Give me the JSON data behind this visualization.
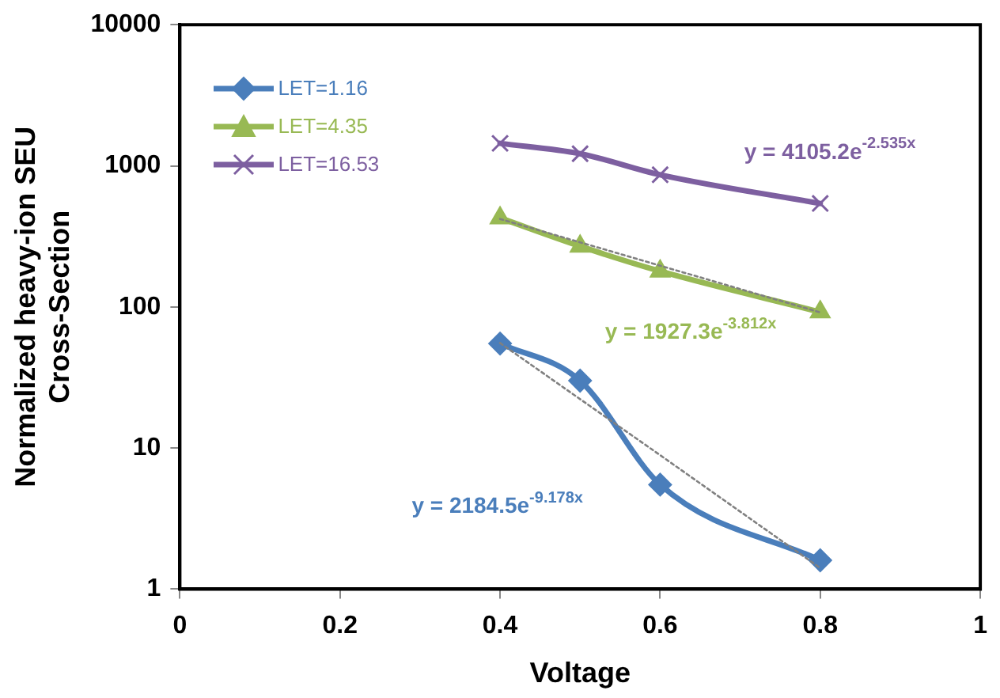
{
  "chart_data": {
    "type": "line",
    "xlabel": "Voltage",
    "ylabel": "Normalized heavy-ion SEU\nCross-Section",
    "xlim": [
      0,
      1
    ],
    "xticks": [
      0,
      0.2,
      0.4,
      0.6,
      0.8,
      1
    ],
    "ylim": [
      1,
      10000
    ],
    "yticks": [
      1,
      10,
      100,
      1000,
      10000
    ],
    "log": "y",
    "grid": false,
    "legend": "top left",
    "x": [
      0.4,
      0.5,
      0.6,
      0.8
    ],
    "series": [
      {
        "name": "LET=1.16",
        "color": "#4a7ebb",
        "marker": "diamond",
        "values": [
          55,
          30,
          5.5,
          1.6
        ]
      },
      {
        "name": "LET=4.35",
        "color": "#98b954",
        "marker": "triangle",
        "values": [
          427,
          269,
          179,
          92
        ]
      },
      {
        "name": "LET=16.53",
        "color": "#7d5fa0",
        "marker": "cross",
        "values": [
          1443,
          1218,
          864,
          541
        ]
      },
      {
        "type": "line",
        "color": "#808080",
        "marker": "none",
        "line_style": "dotted",
        "values": [
          55.5,
          22.2,
          8.9,
          1.41
        ]
      },
      {
        "type": "line",
        "color": "#808080",
        "marker": "none",
        "line_style": "dotted",
        "values": [
          420,
          287,
          196,
          91.4
        ]
      }
    ],
    "annotations": [
      "y = 2184.5e$^{-9.178x}$",
      "y = 1927.3e$^{-3.812x}$",
      "y = 4105.2e$^{-2.535x}$"
    ]
  }
}
